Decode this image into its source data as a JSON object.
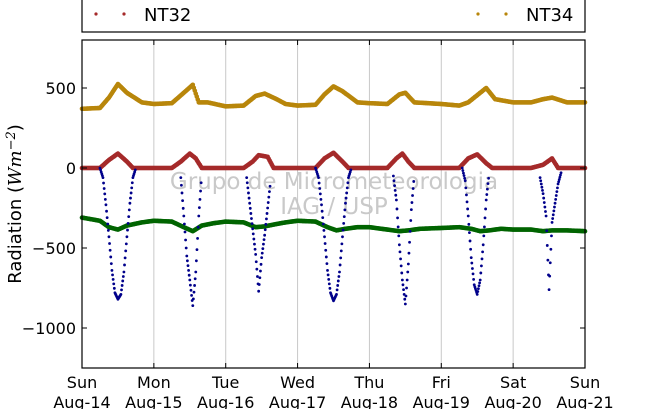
{
  "chart_data": {
    "type": "scatter",
    "ylabel_prefix": "Radiation (",
    "ylabel_math": "Wm",
    "ylabel_exp": "−2",
    "ylabel_suffix": ")",
    "ylim": [
      -1250,
      800
    ],
    "yticks": [
      {
        "value": 500,
        "label": "500"
      },
      {
        "value": 0,
        "label": "0"
      },
      {
        "value": -500,
        "label": "−500"
      },
      {
        "value": -1000,
        "label": "−1000"
      }
    ],
    "xlim": [
      "2016-08-14",
      "2016-08-21"
    ],
    "xticks": [
      {
        "date": "2016-08-14",
        "day": "Sun",
        "date_label": "Aug-14"
      },
      {
        "date": "2016-08-15",
        "day": "Mon",
        "date_label": "Aug-15"
      },
      {
        "date": "2016-08-16",
        "day": "Tue",
        "date_label": "Aug-16"
      },
      {
        "date": "2016-08-17",
        "day": "Wed",
        "date_label": "Aug-17"
      },
      {
        "date": "2016-08-18",
        "day": "Thu",
        "date_label": "Aug-18"
      },
      {
        "date": "2016-08-19",
        "day": "Fri",
        "date_label": "Aug-19"
      },
      {
        "date": "2016-08-20",
        "day": "Sat",
        "date_label": "Aug-20"
      },
      {
        "date": "2016-08-21",
        "day": "Sun",
        "date_label": "Aug-21"
      }
    ],
    "grid": "vertical",
    "legend_placement": "top",
    "legend": [
      {
        "name": "NT32",
        "color": "#a52a2a"
      },
      {
        "name": "NT34",
        "color": "#b8860b"
      }
    ],
    "watermark_lines": [
      "Grupo de Micrometeorologia",
      "IAG / USP"
    ],
    "series": [
      {
        "name": "NT34",
        "color": "#b8860b",
        "points": [
          [
            "2016-08-14T00:00",
            370
          ],
          [
            "2016-08-14T06:00",
            375
          ],
          [
            "2016-08-14T09:00",
            440
          ],
          [
            "2016-08-14T12:00",
            525
          ],
          [
            "2016-08-14T15:00",
            470
          ],
          [
            "2016-08-14T20:00",
            410
          ],
          [
            "2016-08-15T00:00",
            400
          ],
          [
            "2016-08-15T06:00",
            405
          ],
          [
            "2016-08-15T10:00",
            470
          ],
          [
            "2016-08-15T13:00",
            520
          ],
          [
            "2016-08-15T15:00",
            410
          ],
          [
            "2016-08-15T18:00",
            410
          ],
          [
            "2016-08-16T00:00",
            385
          ],
          [
            "2016-08-16T06:00",
            390
          ],
          [
            "2016-08-16T10:00",
            450
          ],
          [
            "2016-08-16T13:00",
            465
          ],
          [
            "2016-08-16T17:00",
            430
          ],
          [
            "2016-08-16T20:00",
            400
          ],
          [
            "2016-08-17T00:00",
            390
          ],
          [
            "2016-08-17T06:00",
            395
          ],
          [
            "2016-08-17T09:00",
            460
          ],
          [
            "2016-08-17T12:00",
            510
          ],
          [
            "2016-08-17T15:00",
            480
          ],
          [
            "2016-08-17T20:00",
            410
          ],
          [
            "2016-08-18T00:00",
            405
          ],
          [
            "2016-08-18T06:00",
            400
          ],
          [
            "2016-08-18T10:00",
            460
          ],
          [
            "2016-08-18T12:00",
            470
          ],
          [
            "2016-08-18T15:00",
            410
          ],
          [
            "2016-08-19T00:00",
            400
          ],
          [
            "2016-08-19T06:00",
            390
          ],
          [
            "2016-08-19T09:00",
            410
          ],
          [
            "2016-08-19T13:00",
            470
          ],
          [
            "2016-08-19T15:00",
            500
          ],
          [
            "2016-08-19T18:00",
            430
          ],
          [
            "2016-08-20T00:00",
            410
          ],
          [
            "2016-08-20T06:00",
            410
          ],
          [
            "2016-08-20T10:00",
            430
          ],
          [
            "2016-08-20T13:00",
            440
          ],
          [
            "2016-08-20T18:00",
            410
          ],
          [
            "2016-08-21T00:00",
            410
          ]
        ]
      },
      {
        "name": "NT32",
        "color": "#a52a2a",
        "points": [
          [
            "2016-08-14T00:00",
            0
          ],
          [
            "2016-08-14T06:00",
            0
          ],
          [
            "2016-08-14T09:00",
            50
          ],
          [
            "2016-08-14T12:00",
            90
          ],
          [
            "2016-08-14T15:00",
            40
          ],
          [
            "2016-08-14T17:00",
            0
          ],
          [
            "2016-08-15T00:00",
            0
          ],
          [
            "2016-08-15T06:00",
            0
          ],
          [
            "2016-08-15T09:00",
            40
          ],
          [
            "2016-08-15T12:00",
            90
          ],
          [
            "2016-08-15T14:00",
            60
          ],
          [
            "2016-08-15T16:00",
            0
          ],
          [
            "2016-08-16T00:00",
            0
          ],
          [
            "2016-08-16T06:00",
            0
          ],
          [
            "2016-08-16T09:00",
            40
          ],
          [
            "2016-08-16T11:00",
            80
          ],
          [
            "2016-08-16T14:00",
            70
          ],
          [
            "2016-08-16T16:00",
            0
          ],
          [
            "2016-08-17T00:00",
            0
          ],
          [
            "2016-08-17T06:00",
            0
          ],
          [
            "2016-08-17T09:00",
            60
          ],
          [
            "2016-08-17T12:00",
            95
          ],
          [
            "2016-08-17T15:00",
            40
          ],
          [
            "2016-08-17T17:00",
            0
          ],
          [
            "2016-08-18T00:00",
            0
          ],
          [
            "2016-08-18T06:00",
            0
          ],
          [
            "2016-08-18T09:00",
            60
          ],
          [
            "2016-08-18T11:00",
            90
          ],
          [
            "2016-08-18T13:00",
            40
          ],
          [
            "2016-08-18T15:00",
            0
          ],
          [
            "2016-08-19T00:00",
            0
          ],
          [
            "2016-08-19T06:00",
            0
          ],
          [
            "2016-08-19T09:00",
            60
          ],
          [
            "2016-08-19T12:00",
            85
          ],
          [
            "2016-08-19T15:00",
            30
          ],
          [
            "2016-08-19T17:00",
            0
          ],
          [
            "2016-08-20T00:00",
            0
          ],
          [
            "2016-08-20T06:00",
            0
          ],
          [
            "2016-08-20T10:00",
            20
          ],
          [
            "2016-08-20T13:00",
            60
          ],
          [
            "2016-08-20T15:00",
            0
          ],
          [
            "2016-08-21T00:00",
            0
          ]
        ]
      },
      {
        "name": "",
        "color": "#006400",
        "points": [
          [
            "2016-08-14T00:00",
            -310
          ],
          [
            "2016-08-14T06:00",
            -330
          ],
          [
            "2016-08-14T09:00",
            -370
          ],
          [
            "2016-08-14T12:00",
            -385
          ],
          [
            "2016-08-14T15:00",
            -360
          ],
          [
            "2016-08-14T20:00",
            -340
          ],
          [
            "2016-08-15T00:00",
            -330
          ],
          [
            "2016-08-15T06:00",
            -335
          ],
          [
            "2016-08-15T10:00",
            -370
          ],
          [
            "2016-08-15T13:00",
            -395
          ],
          [
            "2016-08-15T16:00",
            -360
          ],
          [
            "2016-08-15T20:00",
            -345
          ],
          [
            "2016-08-16T00:00",
            -335
          ],
          [
            "2016-08-16T06:00",
            -340
          ],
          [
            "2016-08-16T10:00",
            -370
          ],
          [
            "2016-08-16T13:00",
            -365
          ],
          [
            "2016-08-16T17:00",
            -350
          ],
          [
            "2016-08-16T20:00",
            -340
          ],
          [
            "2016-08-17T00:00",
            -330
          ],
          [
            "2016-08-17T06:00",
            -335
          ],
          [
            "2016-08-17T10:00",
            -370
          ],
          [
            "2016-08-17T13:00",
            -390
          ],
          [
            "2016-08-17T16:00",
            -380
          ],
          [
            "2016-08-17T20:00",
            -370
          ],
          [
            "2016-08-18T00:00",
            -370
          ],
          [
            "2016-08-18T06:00",
            -385
          ],
          [
            "2016-08-18T10:00",
            -395
          ],
          [
            "2016-08-18T13:00",
            -390
          ],
          [
            "2016-08-18T17:00",
            -380
          ],
          [
            "2016-08-19T00:00",
            -375
          ],
          [
            "2016-08-19T06:00",
            -370
          ],
          [
            "2016-08-19T10:00",
            -380
          ],
          [
            "2016-08-19T13:00",
            -395
          ],
          [
            "2016-08-19T16:00",
            -390
          ],
          [
            "2016-08-19T20:00",
            -380
          ],
          [
            "2016-08-20T00:00",
            -385
          ],
          [
            "2016-08-20T06:00",
            -385
          ],
          [
            "2016-08-20T10:00",
            -395
          ],
          [
            "2016-08-20T13:00",
            -390
          ],
          [
            "2016-08-20T18:00",
            -390
          ],
          [
            "2016-08-21T00:00",
            -395
          ]
        ]
      },
      {
        "name": "",
        "color": "#00008b",
        "points": [
          [
            "2016-08-14T06:00",
            0
          ],
          [
            "2016-08-14T07:00",
            -60
          ],
          [
            "2016-08-14T08:00",
            -230
          ],
          [
            "2016-08-14T09:00",
            -430
          ],
          [
            "2016-08-14T10:00",
            -640
          ],
          [
            "2016-08-14T11:00",
            -780
          ],
          [
            "2016-08-14T12:00",
            -820
          ],
          [
            "2016-08-14T13:00",
            -790
          ],
          [
            "2016-08-14T14:00",
            -650
          ],
          [
            "2016-08-14T15:00",
            -430
          ],
          [
            "2016-08-14T16:00",
            -220
          ],
          [
            "2016-08-14T17:00",
            -60
          ],
          [
            "2016-08-14T18:00",
            0
          ],
          [
            "2016-08-15T09:00",
            -60
          ],
          [
            "2016-08-15T10:00",
            -300
          ],
          [
            "2016-08-15T11:00",
            -550
          ],
          [
            "2016-08-15T12:00",
            -700
          ],
          [
            "2016-08-15T13:00",
            -860
          ],
          [
            "2016-08-15T14:00",
            -650
          ],
          [
            "2016-08-15T15:00",
            -300
          ],
          [
            "2016-08-15T16:00",
            -40
          ],
          [
            "2016-08-16T07:00",
            -60
          ],
          [
            "2016-08-16T09:00",
            -380
          ],
          [
            "2016-08-16T10:00",
            -540
          ],
          [
            "2016-08-16T11:00",
            -770
          ],
          [
            "2016-08-16T12:00",
            -560
          ],
          [
            "2016-08-16T13:00",
            -420
          ],
          [
            "2016-08-16T14:00",
            -250
          ],
          [
            "2016-08-16T15:00",
            -80
          ],
          [
            "2016-08-17T06:00",
            0
          ],
          [
            "2016-08-17T07:00",
            -60
          ],
          [
            "2016-08-17T08:00",
            -230
          ],
          [
            "2016-08-17T09:00",
            -430
          ],
          [
            "2016-08-17T10:00",
            -640
          ],
          [
            "2016-08-17T11:00",
            -780
          ],
          [
            "2016-08-17T12:00",
            -830
          ],
          [
            "2016-08-17T13:00",
            -790
          ],
          [
            "2016-08-17T14:00",
            -650
          ],
          [
            "2016-08-17T15:00",
            -430
          ],
          [
            "2016-08-17T16:00",
            -220
          ],
          [
            "2016-08-17T17:00",
            -60
          ],
          [
            "2016-08-17T18:00",
            0
          ],
          [
            "2016-08-18T08:00",
            -50
          ],
          [
            "2016-08-18T09:00",
            -200
          ],
          [
            "2016-08-18T10:00",
            -480
          ],
          [
            "2016-08-18T11:00",
            -700
          ],
          [
            "2016-08-18T12:00",
            -850
          ],
          [
            "2016-08-18T13:00",
            -600
          ],
          [
            "2016-08-18T14:00",
            -260
          ],
          [
            "2016-08-18T15:00",
            -40
          ],
          [
            "2016-08-19T07:00",
            0
          ],
          [
            "2016-08-19T08:00",
            -80
          ],
          [
            "2016-08-19T09:00",
            -300
          ],
          [
            "2016-08-19T10:00",
            -560
          ],
          [
            "2016-08-19T11:00",
            -730
          ],
          [
            "2016-08-19T12:00",
            -790
          ],
          [
            "2016-08-19T13:00",
            -700
          ],
          [
            "2016-08-19T14:00",
            -480
          ],
          [
            "2016-08-19T15:00",
            -200
          ],
          [
            "2016-08-19T16:00",
            -30
          ],
          [
            "2016-08-20T09:00",
            -60
          ],
          [
            "2016-08-20T10:00",
            -160
          ],
          [
            "2016-08-20T11:00",
            -300
          ],
          [
            "2016-08-20T12:00",
            -760
          ],
          [
            "2016-08-20T13:00",
            -340
          ],
          [
            "2016-08-20T14:00",
            -220
          ],
          [
            "2016-08-20T15:00",
            -100
          ],
          [
            "2016-08-20T16:00",
            -30
          ]
        ]
      }
    ]
  }
}
